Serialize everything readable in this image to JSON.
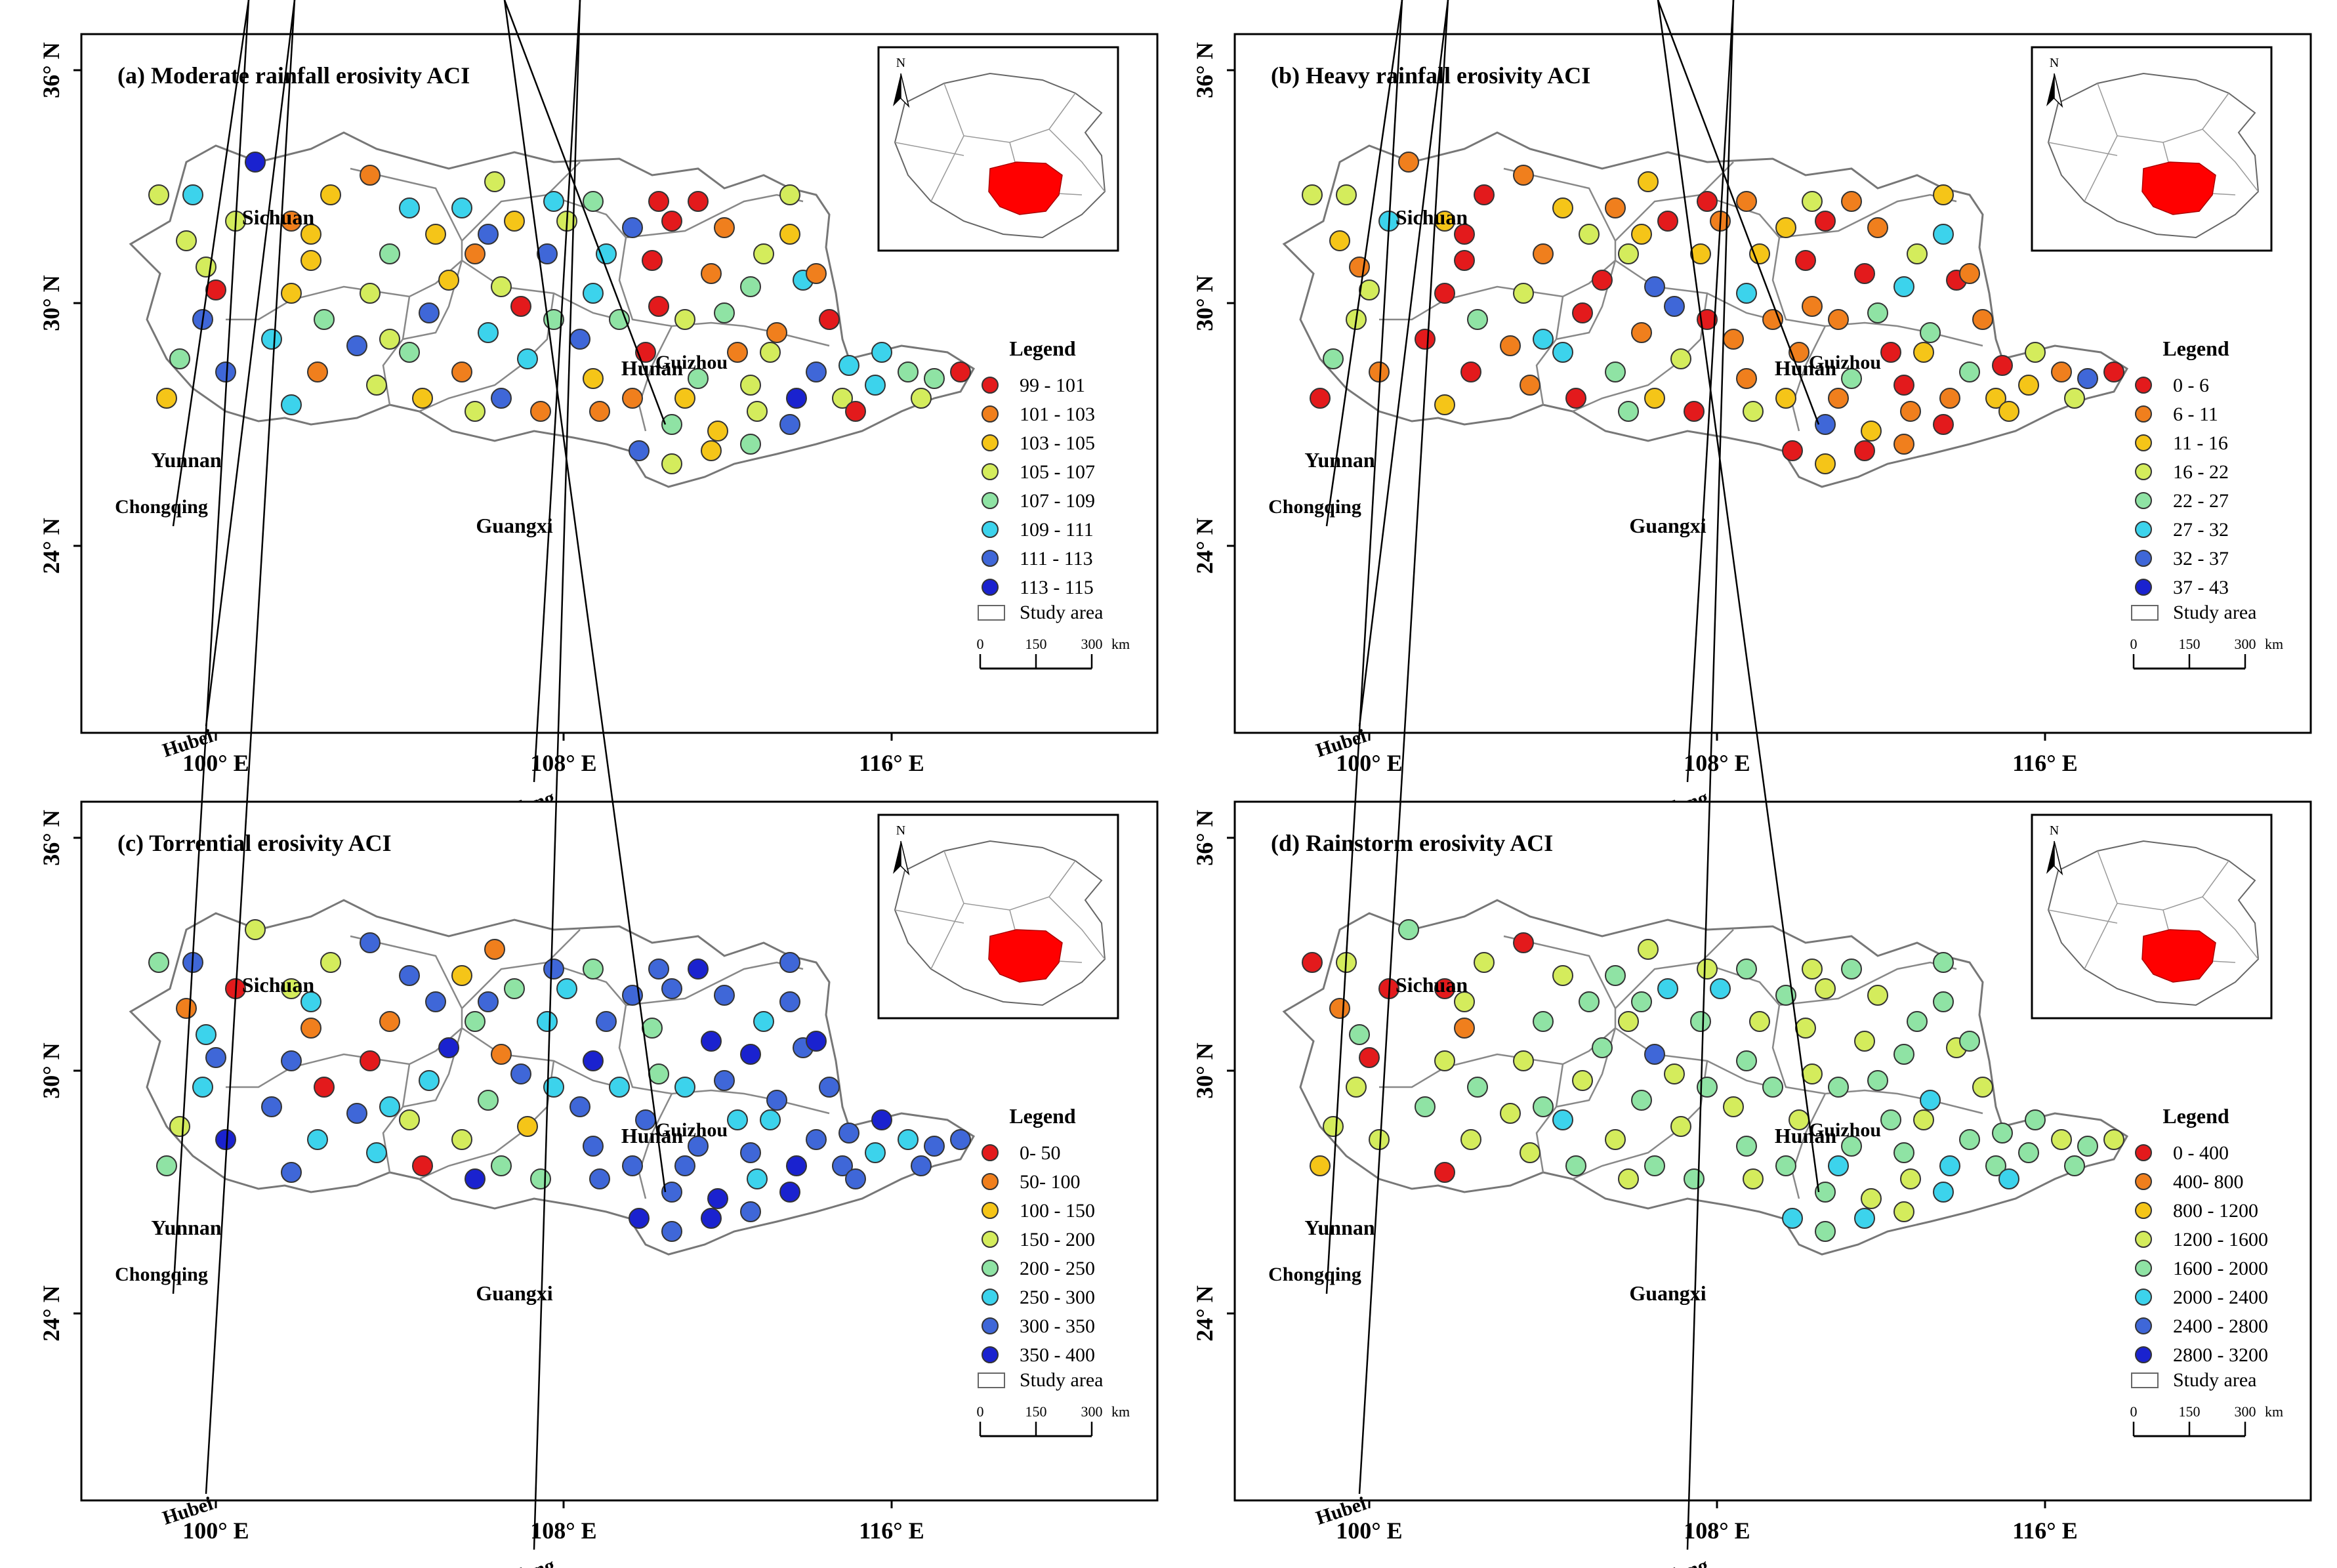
{
  "palette": [
    "#e31a1c",
    "#f07f1d",
    "#f5c518",
    "#d4ec5c",
    "#8fe3a4",
    "#3cd3ec",
    "#3f67d8",
    "#1a22cf"
  ],
  "axes": {
    "lat_labels": [
      "36° N",
      "30° N",
      "24° N"
    ],
    "lon_labels": [
      "100° E",
      "108° E",
      "116° E"
    ]
  },
  "provinces": {
    "sichuan": "Sichuan",
    "chongqing": "Chongqing",
    "hubei": "Hubei",
    "hunan": "Hunan",
    "guangdong": "Guangdong",
    "guangxi": "Guangxi",
    "guizhou": "Guizhou",
    "yunnan": "Yunnan"
  },
  "legend": {
    "heading": "Legend",
    "study_area": "Study area",
    "scale_ticks": [
      "0",
      "150",
      "300"
    ],
    "scale_unit": "km"
  },
  "north_letter": "N",
  "panels": [
    {
      "title": "(a) Moderate rainfall erosivity ACI",
      "classes": [
        "99 - 101",
        "101 - 103",
        "103 - 105",
        "105 - 107",
        "107 - 109",
        "109 - 111",
        "111 - 113",
        "113 - 115"
      ]
    },
    {
      "title": "(b) Heavy rainfall erosivity ACI",
      "classes": [
        "0 - 6",
        "6 - 11",
        "11 - 16",
        "16 - 22",
        "22 - 27",
        "27 - 32",
        "32 - 37",
        "37 - 43"
      ]
    },
    {
      "title": "(c) Torrential erosivity ACI",
      "classes": [
        "0- 50",
        "50- 100",
        "100 - 150",
        "150 - 200",
        "200 - 250",
        "250 - 300",
        "300 - 350",
        "350 - 400"
      ]
    },
    {
      "title": "(d) Rainstorm erosivity ACI",
      "classes": [
        "0 - 400",
        "400- 800",
        "800 - 1200",
        "1200 - 1600",
        "1600 - 2000",
        "2000 - 2400",
        "2400 - 2800",
        "2800 - 3200"
      ]
    }
  ]
}
